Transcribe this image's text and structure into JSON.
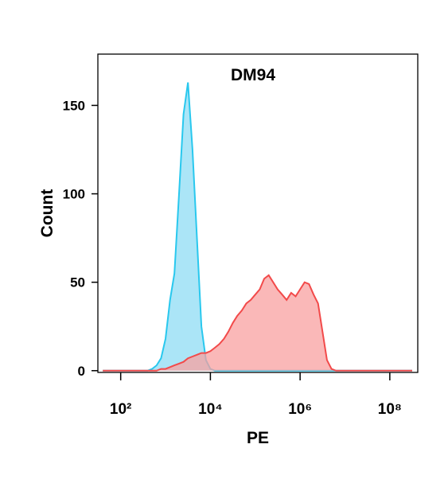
{
  "chart_data": {
    "type": "area",
    "title": "DM94",
    "x_label": "PE",
    "y_label": "Count",
    "xscale": "log",
    "x": [
      40,
      398,
      501,
      631,
      794,
      1000,
      1260,
      1580,
      2000,
      2510,
      3160,
      3980,
      5010,
      6310,
      7940,
      10000,
      12600,
      15800,
      20000,
      25100,
      31600,
      39800,
      50100,
      63100,
      79400,
      100000,
      126000,
      158000,
      200000,
      251000,
      316000,
      398000,
      501000,
      631000,
      794000,
      1000000,
      1260000,
      1580000,
      2000000,
      2510000,
      3160000,
      3980000,
      5010000,
      6310000,
      7940000,
      316000000
    ],
    "series": [
      {
        "color": "#29c8ee",
        "fill": "#8fdcf4",
        "values": [
          0,
          0,
          1,
          3,
          7,
          18,
          40,
          55,
          100,
          145,
          163,
          125,
          75,
          25,
          6,
          1,
          0,
          0,
          0,
          0,
          0,
          0,
          0,
          0,
          0,
          0,
          0,
          0,
          0,
          0,
          0,
          0,
          0,
          0,
          0,
          0,
          0,
          0,
          0,
          0,
          0,
          0,
          0,
          0,
          0,
          0
        ]
      },
      {
        "color": "#f24a4a",
        "fill": "#f8a0a0",
        "values": [
          0,
          0,
          0,
          0,
          1,
          1,
          2,
          3,
          4,
          5,
          7,
          8,
          9,
          10,
          10,
          11,
          13,
          15,
          18,
          22,
          27,
          31,
          34,
          38,
          40,
          43,
          46,
          52,
          54,
          50,
          46,
          43,
          40,
          44,
          42,
          46,
          50,
          49,
          43,
          38,
          22,
          6,
          1,
          0,
          0,
          0
        ]
      }
    ],
    "xlim": [
      31,
      420000000
    ],
    "ylim": [
      -1,
      179
    ],
    "xticks": [
      {
        "value": 100,
        "label": "10²"
      },
      {
        "value": 10000,
        "label": "10⁴"
      },
      {
        "value": 1000000,
        "label": "10⁶"
      },
      {
        "value": 100000000,
        "label": "10⁸"
      }
    ],
    "yticks": [
      0,
      50,
      100,
      150
    ]
  }
}
